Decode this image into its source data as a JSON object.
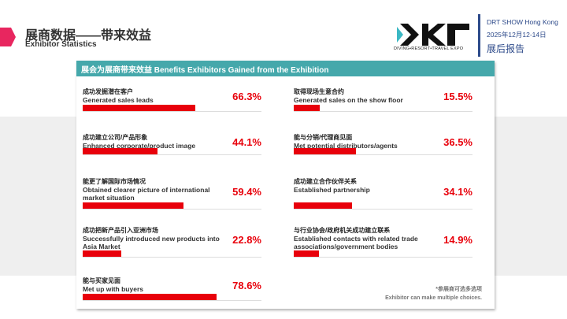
{
  "header": {
    "title_zh": "展商数据——带来效益",
    "title_en": "Exhibitor Statistics"
  },
  "brand": {
    "logo_text": "DRT",
    "logo_tagline": "DIVING•RESORT•TRAVEL EXPO",
    "show": "DRT SHOW Hong Kong",
    "date": "2025年12月12-14日",
    "report": "展后报告"
  },
  "card": {
    "title": "展会为展商带来效益 Benefits Exhibitors Gained from the Exhibition",
    "items": [
      {
        "zh": "成功发掘潜在客户",
        "en": "Generated sales leads",
        "pct": "66.3%",
        "value": 66.3
      },
      {
        "zh": "取得现场生意合约",
        "en": "Generated sales on the show floor",
        "pct": "15.5%",
        "value": 15.5
      },
      {
        "zh": "成功建立公司/产品形象",
        "en": "Enhanced corporate/product image",
        "pct": "44.1%",
        "value": 44.1
      },
      {
        "zh": "能与分销/代理商见面",
        "en": "Met potential distributors/agents",
        "pct": "36.5%",
        "value": 36.5
      },
      {
        "zh": "能更了解国际市场情况",
        "en": "Obtained clearer picture of international market situation",
        "pct": "59.4%",
        "value": 59.4
      },
      {
        "zh": "成功建立合作伙伴关系",
        "en": "Established partnership",
        "pct": "34.1%",
        "value": 34.1
      },
      {
        "zh": "成功把新产品引入亚洲市场",
        "en": "Successfully introduced new products into Asia Market",
        "pct": "22.8%",
        "value": 22.8
      },
      {
        "zh": "与行业协会/政府机关成功建立联系",
        "en": "Established contacts with related trade associations/government bodies",
        "pct": "14.9%",
        "value": 14.9
      },
      {
        "zh": "能与买家见面",
        "en": "Met up with buyers",
        "pct": "78.6%",
        "value": 78.6
      }
    ],
    "note_zh": "*参展商可选多选项",
    "note_en": "Exhibitor can make multiple choices."
  },
  "colors": {
    "accent": "#e8000b",
    "teal": "#45a8ab",
    "navy": "#2d4a8a",
    "pink": "#e8265f"
  }
}
